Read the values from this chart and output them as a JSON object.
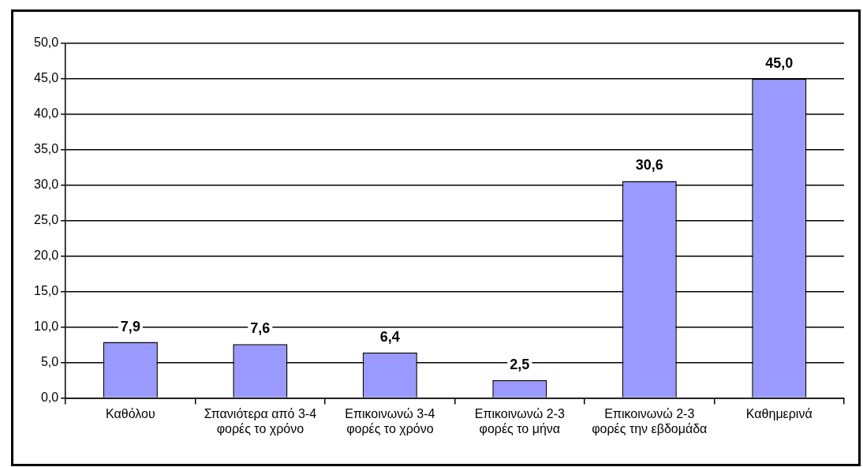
{
  "chart_data": {
    "type": "bar",
    "categories": [
      "Καθόλου",
      "Σπανιότερα από 3-4 φορές το χρόνο",
      "Επικοινωνώ 3-4 φορές το χρόνο",
      "Επικοινωνώ 2-3 φορές το μήνα",
      "Επικοινωνώ 2-3 φορές την εβδομάδα",
      "Καθημερινά"
    ],
    "values": [
      7.9,
      7.6,
      6.4,
      2.5,
      30.6,
      45.0
    ],
    "value_labels": [
      "7,9",
      "7,6",
      "6,4",
      "2,5",
      "30,6",
      "45,0"
    ],
    "color": "#9999ff",
    "ylim": [
      0,
      50
    ],
    "yticks": [
      {
        "value": 0,
        "label": "0,0"
      },
      {
        "value": 5,
        "label": "5,0"
      },
      {
        "value": 10,
        "label": "10,0"
      },
      {
        "value": 15,
        "label": "15,0"
      },
      {
        "value": 20,
        "label": "20,0"
      },
      {
        "value": 25,
        "label": "25,0"
      },
      {
        "value": 30,
        "label": "30,0"
      },
      {
        "value": 35,
        "label": "35,0"
      },
      {
        "value": 40,
        "label": "40,0"
      },
      {
        "value": 45,
        "label": "45,0"
      },
      {
        "value": 50,
        "label": "50,0"
      }
    ],
    "grid": "y",
    "legend": false
  }
}
